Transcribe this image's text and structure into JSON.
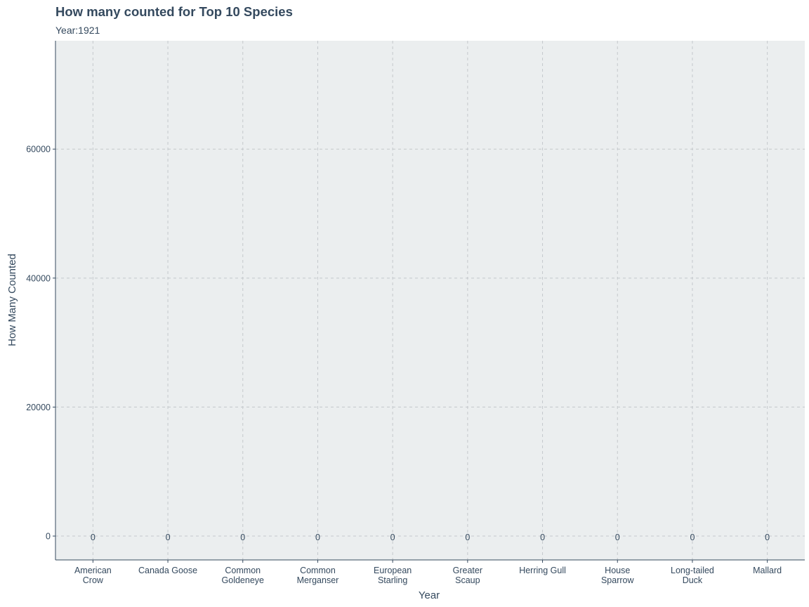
{
  "chart_data": {
    "type": "bar",
    "title": "How many counted for Top 10 Species",
    "subtitle": "Year:1921",
    "xlabel": "Year",
    "ylabel": "How Many Counted",
    "categories": [
      "American\nCrow",
      "Canada Goose",
      "Common\nGoldeneye",
      "Common\nMerganser",
      "European\nStarling",
      "Greater\nScaup",
      "Herring Gull",
      "House\nSparrow",
      "Long-tailed\nDuck",
      "Mallard"
    ],
    "values": [
      0,
      0,
      0,
      0,
      0,
      0,
      0,
      0,
      0,
      0
    ],
    "data_labels": [
      "0",
      "0",
      "0",
      "0",
      "0",
      "0",
      "0",
      "0",
      "0",
      "0"
    ],
    "yticks": [
      0,
      20000,
      40000,
      60000
    ],
    "ylim": [
      -3700,
      76800
    ],
    "grid": true,
    "legend": "none"
  },
  "colors": {
    "panel_bg": "#ebeeef",
    "text": "#34495e",
    "grid": "#c4c8cc",
    "axis": "#34495e"
  }
}
